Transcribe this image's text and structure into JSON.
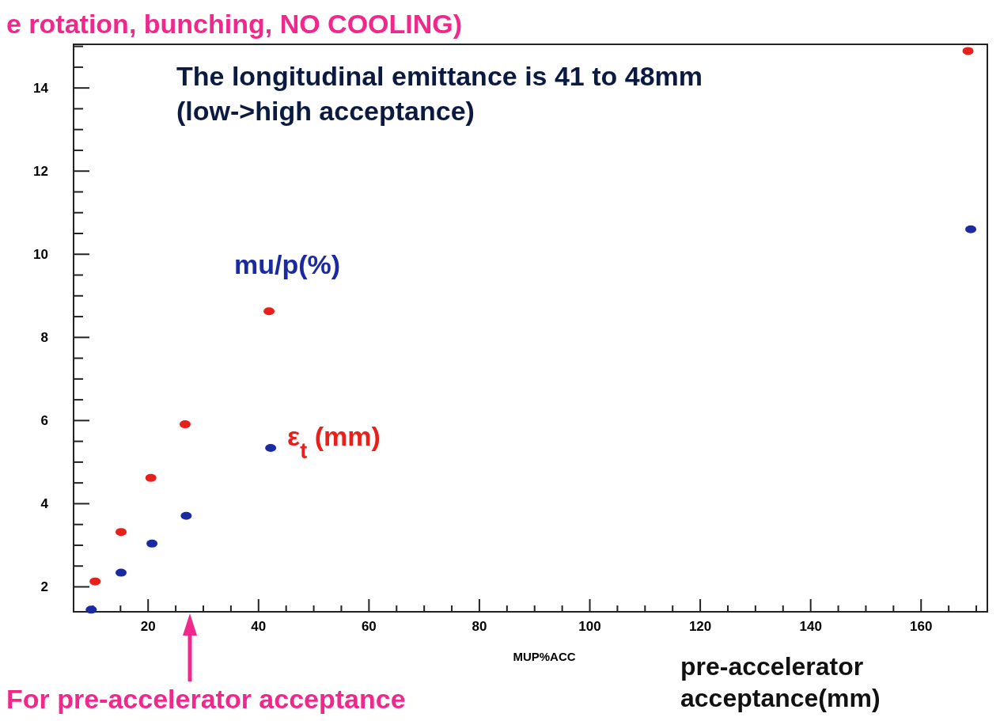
{
  "chart_data": {
    "type": "scatter",
    "title": "e rotation, bunching, NO COOLING)",
    "xlabel": "MUP%ACC",
    "marker": "circle",
    "grid": false,
    "xlim": [
      6.5,
      172
    ],
    "ylim": [
      1.4,
      15.05
    ],
    "xticks": [
      {
        "value": 10,
        "label": null
      },
      {
        "value": 15,
        "label": null
      },
      20,
      {
        "value": 25,
        "label": null
      },
      {
        "value": 30,
        "label": null
      },
      {
        "value": 35,
        "label": null
      },
      40,
      {
        "value": 45,
        "label": null
      },
      {
        "value": 50,
        "label": null
      },
      {
        "value": 55,
        "label": null
      },
      60,
      {
        "value": 65,
        "label": null
      },
      {
        "value": 70,
        "label": null
      },
      {
        "value": 75,
        "label": null
      },
      80,
      {
        "value": 85,
        "label": null
      },
      {
        "value": 90,
        "label": null
      },
      {
        "value": 95,
        "label": null
      },
      100,
      {
        "value": 105,
        "label": null
      },
      {
        "value": 110,
        "label": null
      },
      {
        "value": 115,
        "label": null
      },
      120,
      {
        "value": 125,
        "label": null
      },
      {
        "value": 130,
        "label": null
      },
      {
        "value": 135,
        "label": null
      },
      140,
      {
        "value": 145,
        "label": null
      },
      {
        "value": 150,
        "label": null
      },
      {
        "value": 155,
        "label": null
      },
      160,
      {
        "value": 165,
        "label": null
      },
      {
        "value": 170,
        "label": null
      }
    ],
    "yticks": [
      2,
      {
        "value": 2.5,
        "label": null
      },
      {
        "value": 3,
        "label": null
      },
      {
        "value": 3.5,
        "label": null
      },
      4,
      {
        "value": 4.5,
        "label": null
      },
      {
        "value": 5,
        "label": null
      },
      {
        "value": 5.5,
        "label": null
      },
      6,
      {
        "value": 6.5,
        "label": null
      },
      {
        "value": 7,
        "label": null
      },
      {
        "value": 7.5,
        "label": null
      },
      8,
      {
        "value": 8.5,
        "label": null
      },
      {
        "value": 9,
        "label": null
      },
      {
        "value": 9.5,
        "label": null
      },
      10,
      {
        "value": 10.5,
        "label": null
      },
      {
        "value": 11,
        "label": null
      },
      {
        "value": 11.5,
        "label": null
      },
      12,
      {
        "value": 12.5,
        "label": null
      },
      {
        "value": 13,
        "label": null
      },
      {
        "value": 13.5,
        "label": null
      },
      14,
      {
        "value": 14.5,
        "label": null
      },
      {
        "value": 15,
        "label": null
      }
    ],
    "series": [
      {
        "name": "ε$_{t}$ (mm)",
        "color": "#e8201c",
        "x": [
          10.4,
          15.1,
          20.5,
          26.7,
          41.9,
          168.5
        ],
        "values": [
          2.13,
          3.32,
          4.62,
          5.91,
          8.63,
          14.89
        ]
      },
      {
        "name": "mu/p(%)",
        "color": "#1a2aa0",
        "x": [
          9.7,
          15.1,
          20.7,
          26.9,
          42.2,
          169
        ],
        "values": [
          1.45,
          2.34,
          3.04,
          3.71,
          5.34,
          10.6
        ]
      }
    ],
    "annotations": [
      "The longitudinal emittance is 41 to 48mm\n(low->high acceptance)",
      "pre-accelerator\nacceptance(mm)",
      "For pre-accelerator acceptance"
    ]
  }
}
